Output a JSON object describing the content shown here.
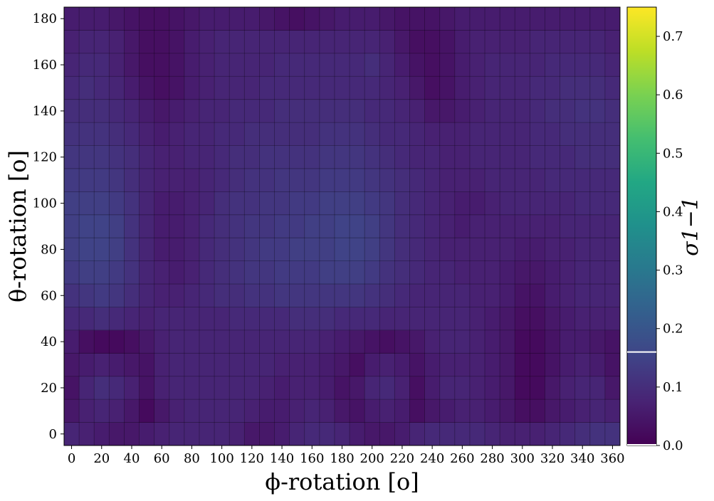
{
  "chart_data": {
    "type": "heatmap",
    "title": "",
    "xlabel": "ϕ-rotation [o]",
    "ylabel": "θ-rotation [o]",
    "xlim": [
      -5,
      365
    ],
    "ylim": [
      -5,
      185
    ],
    "x_ticks": [
      0,
      20,
      40,
      60,
      80,
      100,
      120,
      140,
      160,
      180,
      200,
      220,
      240,
      260,
      280,
      300,
      320,
      340,
      360
    ],
    "y_ticks": [
      0,
      20,
      40,
      60,
      80,
      100,
      120,
      140,
      160,
      180
    ],
    "x_step": 10,
    "y_step": 10,
    "x_values": [
      0,
      10,
      20,
      30,
      40,
      50,
      60,
      70,
      80,
      90,
      100,
      110,
      120,
      130,
      140,
      150,
      160,
      170,
      180,
      190,
      200,
      210,
      220,
      230,
      240,
      250,
      260,
      270,
      280,
      290,
      300,
      310,
      320,
      330,
      340,
      350,
      360
    ],
    "y_values": [
      0,
      10,
      20,
      30,
      40,
      50,
      60,
      70,
      80,
      90,
      100,
      110,
      120,
      130,
      140,
      150,
      160,
      170,
      180
    ],
    "colormap": "viridis",
    "colorbar": {
      "label": "σ1−1",
      "range": [
        0,
        0.75
      ],
      "ticks": [
        0.0,
        0.1,
        0.2,
        0.3,
        0.4,
        0.5,
        0.6,
        0.7
      ],
      "marker_lines": [
        0.0,
        0.16
      ]
    },
    "grid_lines": true,
    "values": [
      [
        0.08,
        0.07,
        0.06,
        0.05,
        0.05,
        0.06,
        0.07,
        0.08,
        0.08,
        0.08,
        0.08,
        0.07,
        0.05,
        0.05,
        0.06,
        0.08,
        0.09,
        0.09,
        0.08,
        0.06,
        0.05,
        0.05,
        0.06,
        0.08,
        0.09,
        0.09,
        0.09,
        0.09,
        0.08,
        0.07,
        0.07,
        0.07,
        0.08,
        0.09,
        0.1,
        0.11,
        0.11
      ],
      [
        0.05,
        0.07,
        0.08,
        0.07,
        0.05,
        0.02,
        0.05,
        0.07,
        0.08,
        0.08,
        0.08,
        0.08,
        0.07,
        0.06,
        0.06,
        0.07,
        0.08,
        0.07,
        0.05,
        0.04,
        0.06,
        0.07,
        0.06,
        0.03,
        0.05,
        0.06,
        0.07,
        0.07,
        0.06,
        0.05,
        0.03,
        0.03,
        0.05,
        0.06,
        0.07,
        0.08,
        0.07
      ],
      [
        0.04,
        0.08,
        0.1,
        0.09,
        0.07,
        0.04,
        0.07,
        0.08,
        0.08,
        0.08,
        0.08,
        0.08,
        0.08,
        0.07,
        0.06,
        0.07,
        0.07,
        0.06,
        0.04,
        0.05,
        0.08,
        0.09,
        0.07,
        0.03,
        0.06,
        0.08,
        0.08,
        0.07,
        0.06,
        0.05,
        0.02,
        0.02,
        0.05,
        0.07,
        0.08,
        0.08,
        0.05
      ],
      [
        0.05,
        0.06,
        0.07,
        0.06,
        0.05,
        0.04,
        0.07,
        0.08,
        0.08,
        0.08,
        0.08,
        0.08,
        0.08,
        0.08,
        0.07,
        0.07,
        0.07,
        0.06,
        0.05,
        0.03,
        0.06,
        0.07,
        0.06,
        0.04,
        0.06,
        0.07,
        0.07,
        0.07,
        0.06,
        0.05,
        0.02,
        0.02,
        0.04,
        0.06,
        0.07,
        0.06,
        0.04
      ],
      [
        0.06,
        0.03,
        0.02,
        0.02,
        0.03,
        0.05,
        0.07,
        0.08,
        0.08,
        0.08,
        0.08,
        0.08,
        0.08,
        0.08,
        0.08,
        0.08,
        0.08,
        0.07,
        0.06,
        0.05,
        0.04,
        0.03,
        0.04,
        0.05,
        0.07,
        0.08,
        0.08,
        0.07,
        0.06,
        0.05,
        0.02,
        0.02,
        0.04,
        0.06,
        0.06,
        0.05,
        0.04
      ],
      [
        0.09,
        0.09,
        0.1,
        0.09,
        0.08,
        0.07,
        0.08,
        0.08,
        0.08,
        0.08,
        0.08,
        0.09,
        0.09,
        0.09,
        0.09,
        0.1,
        0.1,
        0.1,
        0.09,
        0.09,
        0.09,
        0.08,
        0.08,
        0.08,
        0.08,
        0.08,
        0.08,
        0.07,
        0.06,
        0.05,
        0.03,
        0.03,
        0.05,
        0.06,
        0.07,
        0.07,
        0.07
      ],
      [
        0.11,
        0.12,
        0.13,
        0.12,
        0.1,
        0.08,
        0.07,
        0.07,
        0.08,
        0.09,
        0.1,
        0.1,
        0.11,
        0.11,
        0.12,
        0.12,
        0.12,
        0.12,
        0.12,
        0.12,
        0.11,
        0.1,
        0.09,
        0.08,
        0.08,
        0.08,
        0.08,
        0.07,
        0.07,
        0.06,
        0.04,
        0.04,
        0.06,
        0.07,
        0.08,
        0.08,
        0.08
      ],
      [
        0.13,
        0.14,
        0.14,
        0.13,
        0.11,
        0.08,
        0.07,
        0.06,
        0.07,
        0.09,
        0.1,
        0.11,
        0.12,
        0.12,
        0.13,
        0.13,
        0.13,
        0.14,
        0.14,
        0.14,
        0.13,
        0.11,
        0.1,
        0.09,
        0.08,
        0.08,
        0.07,
        0.07,
        0.07,
        0.06,
        0.05,
        0.05,
        0.06,
        0.07,
        0.08,
        0.08,
        0.08
      ],
      [
        0.14,
        0.15,
        0.15,
        0.14,
        0.11,
        0.08,
        0.06,
        0.06,
        0.07,
        0.09,
        0.1,
        0.11,
        0.12,
        0.13,
        0.13,
        0.14,
        0.14,
        0.14,
        0.15,
        0.15,
        0.14,
        0.12,
        0.1,
        0.09,
        0.08,
        0.07,
        0.07,
        0.07,
        0.07,
        0.07,
        0.06,
        0.06,
        0.07,
        0.07,
        0.08,
        0.08,
        0.08
      ],
      [
        0.14,
        0.15,
        0.15,
        0.14,
        0.11,
        0.08,
        0.06,
        0.06,
        0.07,
        0.09,
        0.1,
        0.11,
        0.12,
        0.12,
        0.13,
        0.13,
        0.14,
        0.14,
        0.15,
        0.15,
        0.14,
        0.12,
        0.1,
        0.09,
        0.08,
        0.07,
        0.06,
        0.07,
        0.07,
        0.07,
        0.07,
        0.07,
        0.07,
        0.08,
        0.08,
        0.08,
        0.08
      ],
      [
        0.14,
        0.14,
        0.14,
        0.13,
        0.11,
        0.08,
        0.06,
        0.06,
        0.07,
        0.08,
        0.1,
        0.11,
        0.11,
        0.12,
        0.12,
        0.13,
        0.13,
        0.14,
        0.14,
        0.14,
        0.13,
        0.12,
        0.1,
        0.09,
        0.08,
        0.07,
        0.06,
        0.06,
        0.07,
        0.08,
        0.08,
        0.08,
        0.08,
        0.08,
        0.09,
        0.09,
        0.09
      ],
      [
        0.13,
        0.13,
        0.13,
        0.12,
        0.1,
        0.08,
        0.07,
        0.07,
        0.07,
        0.08,
        0.09,
        0.1,
        0.11,
        0.11,
        0.12,
        0.12,
        0.12,
        0.13,
        0.13,
        0.13,
        0.12,
        0.11,
        0.1,
        0.09,
        0.08,
        0.07,
        0.07,
        0.07,
        0.08,
        0.08,
        0.08,
        0.08,
        0.09,
        0.09,
        0.09,
        0.09,
        0.09
      ],
      [
        0.12,
        0.12,
        0.12,
        0.11,
        0.1,
        0.08,
        0.07,
        0.07,
        0.08,
        0.08,
        0.09,
        0.1,
        0.1,
        0.11,
        0.11,
        0.11,
        0.11,
        0.12,
        0.12,
        0.12,
        0.11,
        0.1,
        0.09,
        0.08,
        0.08,
        0.07,
        0.07,
        0.08,
        0.08,
        0.08,
        0.08,
        0.09,
        0.09,
        0.09,
        0.1,
        0.1,
        0.1
      ],
      [
        0.11,
        0.11,
        0.11,
        0.1,
        0.09,
        0.07,
        0.06,
        0.07,
        0.08,
        0.08,
        0.09,
        0.09,
        0.1,
        0.1,
        0.1,
        0.1,
        0.1,
        0.11,
        0.11,
        0.11,
        0.1,
        0.09,
        0.09,
        0.08,
        0.07,
        0.07,
        0.07,
        0.08,
        0.08,
        0.08,
        0.08,
        0.09,
        0.09,
        0.1,
        0.1,
        0.1,
        0.1
      ],
      [
        0.1,
        0.1,
        0.1,
        0.09,
        0.08,
        0.06,
        0.05,
        0.06,
        0.07,
        0.08,
        0.08,
        0.09,
        0.09,
        0.09,
        0.1,
        0.1,
        0.1,
        0.1,
        0.1,
        0.1,
        0.09,
        0.09,
        0.08,
        0.07,
        0.05,
        0.05,
        0.06,
        0.07,
        0.08,
        0.08,
        0.08,
        0.09,
        0.1,
        0.1,
        0.11,
        0.11,
        0.1
      ],
      [
        0.09,
        0.1,
        0.09,
        0.08,
        0.06,
        0.04,
        0.03,
        0.04,
        0.06,
        0.07,
        0.08,
        0.08,
        0.08,
        0.09,
        0.09,
        0.09,
        0.09,
        0.09,
        0.09,
        0.09,
        0.09,
        0.08,
        0.07,
        0.05,
        0.03,
        0.04,
        0.06,
        0.07,
        0.08,
        0.08,
        0.08,
        0.09,
        0.09,
        0.1,
        0.1,
        0.1,
        0.09
      ],
      [
        0.08,
        0.09,
        0.09,
        0.07,
        0.05,
        0.03,
        0.03,
        0.04,
        0.06,
        0.07,
        0.08,
        0.08,
        0.08,
        0.08,
        0.09,
        0.09,
        0.09,
        0.09,
        0.09,
        0.09,
        0.1,
        0.08,
        0.06,
        0.04,
        0.03,
        0.04,
        0.06,
        0.07,
        0.08,
        0.08,
        0.08,
        0.08,
        0.09,
        0.09,
        0.09,
        0.09,
        0.08
      ],
      [
        0.07,
        0.08,
        0.08,
        0.07,
        0.05,
        0.03,
        0.03,
        0.04,
        0.06,
        0.07,
        0.08,
        0.08,
        0.08,
        0.08,
        0.08,
        0.08,
        0.08,
        0.08,
        0.08,
        0.08,
        0.08,
        0.07,
        0.05,
        0.03,
        0.03,
        0.04,
        0.06,
        0.07,
        0.07,
        0.07,
        0.07,
        0.08,
        0.08,
        0.08,
        0.08,
        0.08,
        0.07
      ],
      [
        0.06,
        0.06,
        0.06,
        0.05,
        0.04,
        0.03,
        0.03,
        0.04,
        0.05,
        0.06,
        0.06,
        0.06,
        0.06,
        0.05,
        0.04,
        0.03,
        0.04,
        0.05,
        0.06,
        0.06,
        0.06,
        0.05,
        0.04,
        0.04,
        0.04,
        0.05,
        0.06,
        0.06,
        0.06,
        0.06,
        0.06,
        0.06,
        0.06,
        0.06,
        0.06,
        0.06,
        0.06
      ]
    ]
  }
}
